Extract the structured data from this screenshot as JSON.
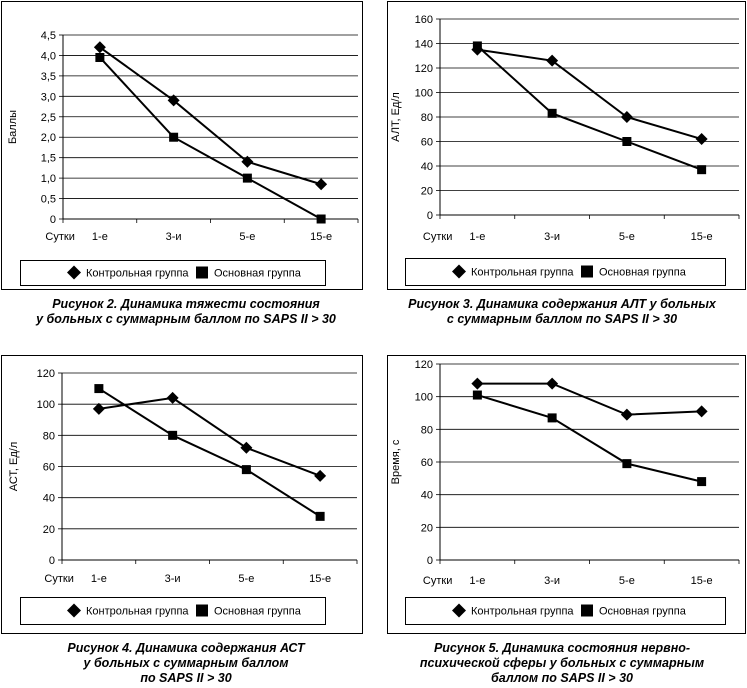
{
  "chart_data": [
    {
      "type": "line",
      "categories": [
        "1-е",
        "3-и",
        "5-е",
        "15-е"
      ],
      "x_axis_prefix": "Сутки",
      "ylabel": "Баллы",
      "ylim": [
        0,
        4.5
      ],
      "yticks": [
        "0",
        "0,5",
        "1,0",
        "1,5",
        "2,0",
        "2,5",
        "3,0",
        "3,5",
        "4,0",
        "4,5"
      ],
      "grid": "horizontal",
      "legend_position": "bottom",
      "series": [
        {
          "name": "Контрольная группа",
          "marker": "diamond",
          "values": [
            4.2,
            2.9,
            1.4,
            0.85
          ]
        },
        {
          "name": "Основная группа",
          "marker": "square",
          "values": [
            3.95,
            2.0,
            1.0,
            0.0
          ]
        }
      ],
      "caption": [
        "Рисунок 2. Динамика тяжести состояния",
        "у больных с суммарным баллом по SAPS II > 30"
      ]
    },
    {
      "type": "line",
      "categories": [
        "1-е",
        "3-и",
        "5-е",
        "15-е"
      ],
      "x_axis_prefix": "Сутки",
      "ylabel": "АЛТ, Ед/л",
      "ylim": [
        0,
        160
      ],
      "yticks": [
        "0",
        "20",
        "40",
        "60",
        "80",
        "100",
        "120",
        "140",
        "160"
      ],
      "grid": "horizontal",
      "legend_position": "bottom",
      "series": [
        {
          "name": "Контрольная группа",
          "marker": "diamond",
          "values": [
            135,
            126,
            80,
            62
          ]
        },
        {
          "name": "Основная группа",
          "marker": "square",
          "values": [
            138,
            83,
            60,
            37
          ]
        }
      ],
      "caption": [
        "Рисунок 3. Динамика содержания АЛТ у больных",
        "с суммарным баллом по SAPS II > 30"
      ]
    },
    {
      "type": "line",
      "categories": [
        "1-е",
        "3-и",
        "5-е",
        "15-е"
      ],
      "x_axis_prefix": "Сутки",
      "ylabel": "АСТ, Ед/л",
      "ylim": [
        0,
        120
      ],
      "yticks": [
        "0",
        "20",
        "40",
        "60",
        "80",
        "100",
        "120"
      ],
      "grid": "horizontal",
      "legend_position": "bottom",
      "series": [
        {
          "name": "Контрольная группа",
          "marker": "diamond",
          "values": [
            97,
            104,
            72,
            54
          ]
        },
        {
          "name": "Основная группа",
          "marker": "square",
          "values": [
            110,
            80,
            58,
            28
          ]
        }
      ],
      "caption": [
        "Рисунок 4. Динамика содержания АСТ",
        "у больных с суммарным баллом",
        "по SAPS II > 30"
      ]
    },
    {
      "type": "line",
      "categories": [
        "1-е",
        "3-и",
        "5-е",
        "15-е"
      ],
      "x_axis_prefix": "Сутки",
      "ylabel": "Время, с",
      "ylim": [
        0,
        120
      ],
      "yticks": [
        "0",
        "20",
        "40",
        "60",
        "80",
        "100",
        "120"
      ],
      "grid": "horizontal",
      "legend_position": "bottom",
      "series": [
        {
          "name": "Контрольная группа",
          "marker": "diamond",
          "values": [
            108,
            108,
            89,
            91
          ]
        },
        {
          "name": "Основная группа",
          "marker": "square",
          "values": [
            101,
            87,
            59,
            48
          ]
        }
      ],
      "caption": [
        "Рисунок 5. Динамика состояния нервно-",
        "психической сферы у больных с суммарным",
        "баллом по SAPS II > 30"
      ]
    }
  ]
}
